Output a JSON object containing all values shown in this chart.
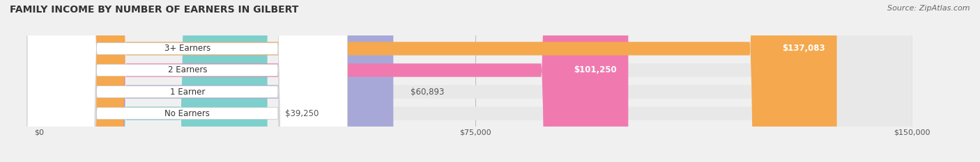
{
  "title": "FAMILY INCOME BY NUMBER OF EARNERS IN GILBERT",
  "source": "Source: ZipAtlas.com",
  "categories": [
    "No Earners",
    "1 Earner",
    "2 Earners",
    "3+ Earners"
  ],
  "values": [
    39250,
    60893,
    101250,
    137083
  ],
  "bar_colors": [
    "#7dd0cc",
    "#a8a8d8",
    "#f07ab0",
    "#f5a84e"
  ],
  "label_colors": [
    "#555555",
    "#555555",
    "#ffffff",
    "#ffffff"
  ],
  "max_value": 150000,
  "x_ticks": [
    0,
    75000,
    150000
  ],
  "x_tick_labels": [
    "$0",
    "$75,000",
    "$150,000"
  ],
  "background_color": "#f0f0f0",
  "bar_background": "#e8e8e8",
  "label_bg_color": "#ffffff",
  "figsize": [
    14.06,
    2.33
  ],
  "dpi": 100
}
